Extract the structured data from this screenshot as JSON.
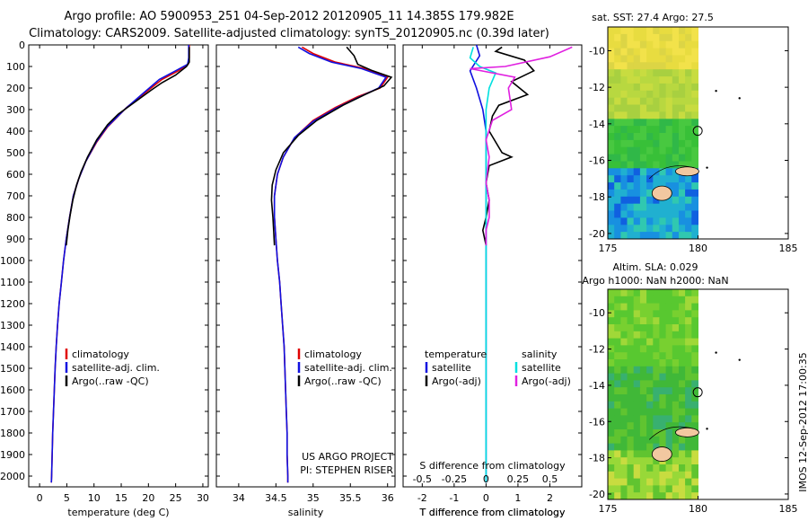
{
  "title_line1": "Argo profile: AO 5900953_251 04-Sep-2012 20120905_11 14.385S 179.982E",
  "title_line2": "Climatology: CARS2009. Satellite-adjusted climatology: synTS_20120905.nc (0.39d later)",
  "depth_ticks": [
    0,
    100,
    200,
    300,
    400,
    500,
    600,
    700,
    800,
    900,
    1000,
    1100,
    1200,
    1300,
    1400,
    1500,
    1600,
    1700,
    1800,
    1900,
    2000
  ],
  "map_sst_title": "sat. SST: 27.4  Argo: 27.5",
  "map_sla_title1": "Altim. SLA: 0.029",
  "map_sla_title2": "Argo h1000: NaN h2000: NaN",
  "watermark": "IMOS 12-Sep-2012 17:00:35",
  "project_line1": "US ARGO PROJECT",
  "project_line2": "PI: STEPHEN RISER",
  "colors": {
    "climatology": "#e00000",
    "satellite": "#1010e0",
    "argo": "#000000",
    "sal_satellite": "#00e0e0",
    "sal_argo": "#e020e0"
  },
  "chart_data": [
    {
      "type": "line",
      "xlabel": "temperature (deg C)",
      "ylabel": "",
      "xlim": [
        -2,
        31
      ],
      "ylim": [
        2050,
        0
      ],
      "x_ticks": [
        0,
        5,
        10,
        15,
        20,
        25,
        30
      ],
      "legend": {
        "position": "bottom-center",
        "entries": [
          "climatology",
          "satellite-adj. clim.",
          "Argo(..raw -QC)"
        ]
      },
      "series": [
        {
          "name": "climatology",
          "color": "#e00000",
          "points": [
            [
              27.5,
              0
            ],
            [
              27.5,
              60
            ],
            [
              27.3,
              90
            ],
            [
              25.5,
              120
            ],
            [
              22.5,
              160
            ],
            [
              19.5,
              220
            ],
            [
              16,
              290
            ],
            [
              12.5,
              380
            ],
            [
              10.5,
              450
            ],
            [
              8.5,
              540
            ],
            [
              7.2,
              620
            ],
            [
              6.2,
              700
            ],
            [
              5.5,
              800
            ],
            [
              4.9,
              900
            ],
            [
              4.4,
              1000
            ],
            [
              4,
              1100
            ],
            [
              3.6,
              1200
            ],
            [
              3.3,
              1300
            ],
            [
              3.05,
              1400
            ],
            [
              2.85,
              1500
            ],
            [
              2.7,
              1600
            ],
            [
              2.55,
              1700
            ],
            [
              2.4,
              1800
            ],
            [
              2.3,
              1900
            ],
            [
              2.2,
              2000
            ],
            [
              2.15,
              2030
            ]
          ]
        },
        {
          "name": "satellite-adj. clim.",
          "color": "#1010e0",
          "points": [
            [
              27.4,
              0
            ],
            [
              27.4,
              60
            ],
            [
              27.2,
              90
            ],
            [
              25,
              120
            ],
            [
              22,
              160
            ],
            [
              19,
              225
            ],
            [
              15.8,
              295
            ],
            [
              12.4,
              380
            ],
            [
              10.4,
              450
            ],
            [
              8.5,
              540
            ],
            [
              7.2,
              620
            ],
            [
              6.2,
              700
            ],
            [
              5.5,
              800
            ],
            [
              4.9,
              900
            ],
            [
              4.4,
              1000
            ],
            [
              4,
              1100
            ],
            [
              3.6,
              1200
            ],
            [
              3.3,
              1300
            ],
            [
              3.05,
              1400
            ],
            [
              2.85,
              1500
            ],
            [
              2.7,
              1600
            ],
            [
              2.55,
              1700
            ],
            [
              2.4,
              1800
            ],
            [
              2.3,
              1900
            ],
            [
              2.2,
              2000
            ],
            [
              2.15,
              2030
            ]
          ]
        },
        {
          "name": "Argo(..raw -QC)",
          "color": "#000000",
          "points": [
            [
              27.5,
              10
            ],
            [
              27.5,
              80
            ],
            [
              27,
              100
            ],
            [
              25,
              140
            ],
            [
              22.5,
              175
            ],
            [
              20.5,
              210
            ],
            [
              17.5,
              265
            ],
            [
              14.5,
              320
            ],
            [
              12.5,
              370
            ],
            [
              10.5,
              440
            ],
            [
              8.8,
              520
            ],
            [
              7.6,
              590
            ],
            [
              6.8,
              650
            ],
            [
              6.1,
              720
            ],
            [
              5.6,
              790
            ],
            [
              5.2,
              860
            ],
            [
              4.9,
              930
            ]
          ]
        }
      ]
    },
    {
      "type": "line",
      "xlabel": "salinity",
      "ylabel": "",
      "xlim": [
        33.7,
        36.1
      ],
      "ylim": [
        2050,
        0
      ],
      "x_ticks": [
        34,
        34.5,
        35,
        35.5,
        36
      ],
      "legend": {
        "position": "bottom-center",
        "entries": [
          "climatology",
          "satellite-adj. clim.",
          "Argo(..raw -QC)"
        ]
      },
      "series": [
        {
          "name": "climatology",
          "color": "#e00000",
          "points": [
            [
              34.85,
              10
            ],
            [
              35.0,
              40
            ],
            [
              35.3,
              80
            ],
            [
              35.7,
              110
            ],
            [
              36.0,
              150
            ],
            [
              35.9,
              200
            ],
            [
              35.6,
              240
            ],
            [
              35.3,
              290
            ],
            [
              35.0,
              350
            ],
            [
              34.75,
              430
            ],
            [
              34.6,
              520
            ],
            [
              34.52,
              600
            ],
            [
              34.48,
              700
            ],
            [
              34.48,
              800
            ],
            [
              34.5,
              900
            ],
            [
              34.52,
              1000
            ],
            [
              34.55,
              1100
            ],
            [
              34.57,
              1200
            ],
            [
              34.59,
              1300
            ],
            [
              34.61,
              1400
            ],
            [
              34.62,
              1500
            ],
            [
              34.63,
              1600
            ],
            [
              34.64,
              1700
            ],
            [
              34.65,
              1800
            ],
            [
              34.65,
              1900
            ],
            [
              34.66,
              2000
            ],
            [
              34.66,
              2030
            ]
          ]
        },
        {
          "name": "satellite-adj. clim.",
          "color": "#1010e0",
          "points": [
            [
              34.8,
              10
            ],
            [
              34.95,
              40
            ],
            [
              35.25,
              80
            ],
            [
              35.65,
              110
            ],
            [
              35.98,
              150
            ],
            [
              35.88,
              200
            ],
            [
              35.6,
              245
            ],
            [
              35.3,
              295
            ],
            [
              35.0,
              355
            ],
            [
              34.75,
              430
            ],
            [
              34.6,
              520
            ],
            [
              34.52,
              600
            ],
            [
              34.48,
              700
            ],
            [
              34.48,
              800
            ],
            [
              34.5,
              900
            ],
            [
              34.52,
              1000
            ],
            [
              34.55,
              1100
            ],
            [
              34.57,
              1200
            ],
            [
              34.59,
              1300
            ],
            [
              34.61,
              1400
            ],
            [
              34.62,
              1500
            ],
            [
              34.63,
              1600
            ],
            [
              34.64,
              1700
            ],
            [
              34.65,
              1800
            ],
            [
              34.65,
              1900
            ],
            [
              34.66,
              2000
            ],
            [
              34.66,
              2030
            ]
          ]
        },
        {
          "name": "Argo(..raw -QC)",
          "color": "#000000",
          "points": [
            [
              35.45,
              10
            ],
            [
              35.55,
              50
            ],
            [
              35.6,
              90
            ],
            [
              35.8,
              120
            ],
            [
              36.05,
              150
            ],
            [
              35.95,
              190
            ],
            [
              35.7,
              230
            ],
            [
              35.4,
              280
            ],
            [
              35.05,
              350
            ],
            [
              34.8,
              420
            ],
            [
              34.6,
              500
            ],
            [
              34.5,
              580
            ],
            [
              34.45,
              650
            ],
            [
              34.44,
              720
            ],
            [
              34.46,
              800
            ],
            [
              34.47,
              860
            ],
            [
              34.48,
              930
            ]
          ]
        }
      ]
    },
    {
      "type": "line",
      "xlabel": "T difference from climatology",
      "x2label": "S difference from climatology",
      "ylabel": "",
      "xlim": [
        -2.6,
        3.0
      ],
      "x2lim": [
        -0.65,
        0.75
      ],
      "ylim": [
        2050,
        0
      ],
      "x_ticks": [
        -2,
        -1,
        0,
        1,
        2
      ],
      "x2_ticks": [
        "-0.5",
        "-0.25",
        "0",
        "0.25",
        "0.5"
      ],
      "legend": {
        "position": "bottom-center",
        "headers": [
          "temperature",
          "salinity"
        ],
        "entries": [
          "satellite",
          "Argo(-adj)",
          "satellite",
          "Argo(-adj)"
        ]
      },
      "series": [
        {
          "name": "temperature satellite",
          "color": "#1010e0",
          "points": [
            [
              -0.3,
              0
            ],
            [
              -0.2,
              50
            ],
            [
              -0.5,
              120
            ],
            [
              -0.3,
              200
            ],
            [
              -0.1,
              300
            ],
            [
              0,
              400
            ],
            [
              0,
              600
            ],
            [
              0,
              1000
            ],
            [
              0,
              2030
            ]
          ]
        },
        {
          "name": "temperature Argo(-adj)",
          "color": "#000000",
          "points": [
            [
              0.5,
              10
            ],
            [
              0.3,
              30
            ],
            [
              1.2,
              70
            ],
            [
              1.5,
              120
            ],
            [
              0.8,
              170
            ],
            [
              1.3,
              230
            ],
            [
              0.4,
              280
            ],
            [
              0.2,
              330
            ],
            [
              0.1,
              400
            ],
            [
              0.5,
              500
            ],
            [
              0.8,
              520
            ],
            [
              0.1,
              560
            ],
            [
              0.0,
              640
            ],
            [
              0.1,
              720
            ],
            [
              0.0,
              800
            ],
            [
              -0.1,
              860
            ],
            [
              0.0,
              930
            ]
          ]
        },
        {
          "name": "salinity satellite",
          "color": "#00e0e0",
          "points": [
            [
              -0.4,
              10
            ],
            [
              -0.5,
              60
            ],
            [
              -0.2,
              100
            ],
            [
              0.3,
              130
            ],
            [
              0.1,
              200
            ],
            [
              0,
              300
            ],
            [
              0,
              500
            ],
            [
              0,
              1000
            ],
            [
              0,
              2030
            ]
          ]
        },
        {
          "name": "salinity Argo(-adj)",
          "color": "#e020e0",
          "points": [
            [
              2.7,
              10
            ],
            [
              2.0,
              55
            ],
            [
              0.6,
              100
            ],
            [
              -0.5,
              110
            ],
            [
              0.9,
              150
            ],
            [
              0.7,
              200
            ],
            [
              0.8,
              300
            ],
            [
              0.2,
              350
            ],
            [
              0.0,
              440
            ],
            [
              0.1,
              520
            ],
            [
              0.0,
              640
            ],
            [
              0.1,
              720
            ],
            [
              0.1,
              800
            ],
            [
              0.0,
              860
            ],
            [
              0.0,
              930
            ]
          ]
        }
      ]
    },
    {
      "type": "heatmap",
      "title": "sat. SST: 27.4  Argo: 27.5",
      "xlim": [
        175,
        185
      ],
      "ylim": [
        -20.3,
        -8.7
      ],
      "x_ticks": [
        175,
        180,
        185
      ],
      "y_ticks": [
        -10,
        -12,
        -14,
        -16,
        -18,
        -20
      ],
      "marker": {
        "lon": 179.982,
        "lat": -14.385
      }
    },
    {
      "type": "heatmap",
      "title": "Altim. SLA: 0.029",
      "xlim": [
        175,
        185
      ],
      "ylim": [
        -20.3,
        -8.7
      ],
      "x_ticks": [
        175,
        180,
        185
      ],
      "y_ticks": [
        -10,
        -12,
        -14,
        -16,
        -18,
        -20
      ],
      "marker": {
        "lon": 179.982,
        "lat": -14.385
      }
    }
  ]
}
